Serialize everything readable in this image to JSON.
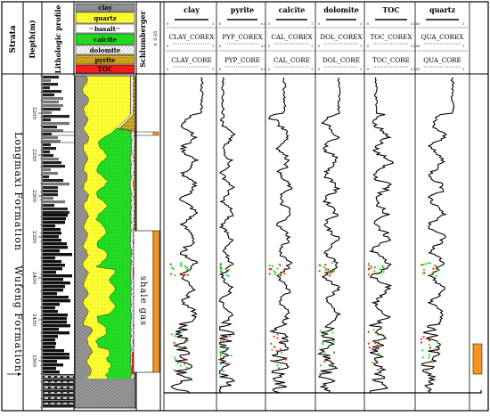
{
  "header": {
    "strata_label": "Strata",
    "depth_label": "Depth(m)",
    "litho_label": "Lithologic profile",
    "schlum_label": "Schlumberger",
    "legend": [
      {
        "label": "clay",
        "color": "#c8c8c8"
      },
      {
        "label": "quartz",
        "color": "#ffff33"
      },
      {
        "label": "basalt",
        "color": "#ffffff"
      },
      {
        "label": "calcite",
        "color": "#22dd22"
      },
      {
        "label": "dolomite",
        "color": "#ffffff"
      },
      {
        "label": "pyrite",
        "color": "#e0c020"
      },
      {
        "label": "TOC",
        "color": "#ff1a1a"
      }
    ]
  },
  "strata": {
    "upper": "Longmaxi Formation",
    "lower": "Wufeng Formation"
  },
  "depth_ticks": [
    "2200",
    "2250",
    "2300",
    "2350",
    "2400",
    "2450",
    "2500"
  ],
  "schlumberger": {
    "zone_label": "shale gas",
    "header_ticks": [
      "0",
      "0.05"
    ]
  },
  "tracks": [
    {
      "title": "clay",
      "curve_top": "CLAY_COREX",
      "curve_bottom": "CLAY_CORE",
      "scale": [
        "0",
        "1"
      ]
    },
    {
      "title": "pyrite",
      "curve_top": "PYP_COREX",
      "curve_bottom": "PYP_CORE",
      "scale": [
        "0",
        "0.1"
      ]
    },
    {
      "title": "calcite",
      "curve_top": "CAL_COREX",
      "curve_bottom": "CAL_CORE",
      "scale": [
        "0",
        "1"
      ]
    },
    {
      "title": "dolomite",
      "curve_top": "DOL_COREX",
      "curve_bottom": "DOL_CORE",
      "scale": [
        "0",
        "1"
      ]
    },
    {
      "title": "TOC",
      "curve_top": "TOC_COREX",
      "curve_bottom": "TOC_CORE",
      "scale": [
        "0",
        "0.15"
      ]
    },
    {
      "title": "quartz",
      "curve_top": "QUA_COREX",
      "curve_bottom": "QUA_CORE",
      "scale": [
        "0",
        "1"
      ]
    }
  ]
}
